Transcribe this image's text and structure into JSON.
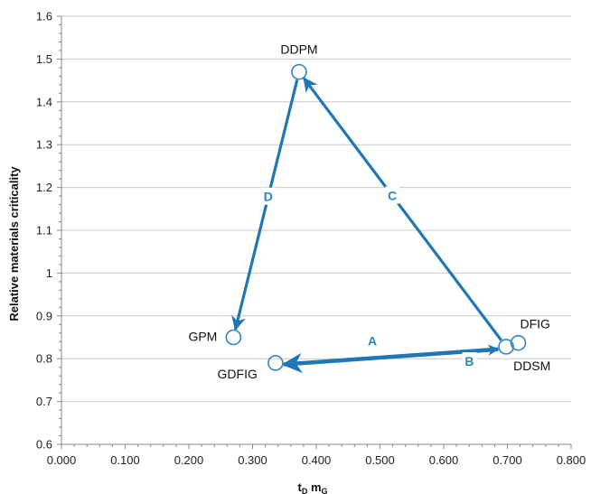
{
  "chart_data": {
    "type": "scatter",
    "xlabel": "t",
    "xlabel_sub1": "D",
    "xlabel_mid": " m",
    "xlabel_sub2": "G",
    "ylabel": "Relative materials criticality",
    "xlim": [
      0,
      0.8
    ],
    "ylim": [
      0.6,
      1.6
    ],
    "x_ticks": [
      "0.000",
      "0.100",
      "0.200",
      "0.300",
      "0.400",
      "0.500",
      "0.600",
      "0.700",
      "0.800"
    ],
    "y_ticks": [
      "0.6",
      "0.7",
      "0.8",
      "0.9",
      "1",
      "1.1",
      "1.2",
      "1.3",
      "1.4",
      "1.5",
      "1.6"
    ],
    "grid": "horizontal",
    "points": [
      {
        "label": "DDPM",
        "x": 0.373,
        "y": 1.47
      },
      {
        "label": "GPM",
        "x": 0.27,
        "y": 0.85
      },
      {
        "label": "GDFIG",
        "x": 0.336,
        "y": 0.79
      },
      {
        "label": "DDSM",
        "x": 0.698,
        "y": 0.828
      },
      {
        "label": "DFIG",
        "x": 0.717,
        "y": 0.837
      }
    ],
    "arrows": [
      {
        "label": "A",
        "from": "DDSM",
        "to": "GDFIG"
      },
      {
        "label": "B",
        "from": "GDFIG",
        "to": "DDSM"
      },
      {
        "label": "C",
        "from": "DDSM",
        "to": "DDPM"
      },
      {
        "label": "D",
        "from": "DDPM",
        "to": "GPM"
      }
    ]
  },
  "colors": {
    "arrow": "#1f77b4",
    "arrow_label": "#2e86c1",
    "marker": "#2e86c1",
    "grid": "#c8c8c8",
    "axis": "#888888"
  }
}
